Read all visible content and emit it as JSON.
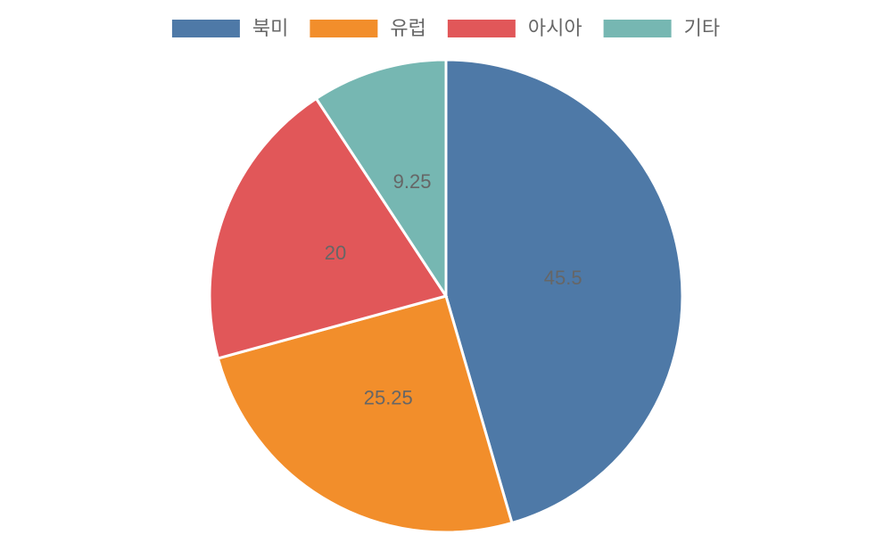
{
  "chart_data": {
    "type": "pie",
    "categories": [
      "북미",
      "유럽",
      "아시아",
      "기타"
    ],
    "values": [
      45.5,
      25.25,
      20,
      9.25
    ],
    "colors": [
      "#4e79a7",
      "#f28e2b",
      "#e15759",
      "#76b7b2"
    ],
    "legend": "top"
  }
}
